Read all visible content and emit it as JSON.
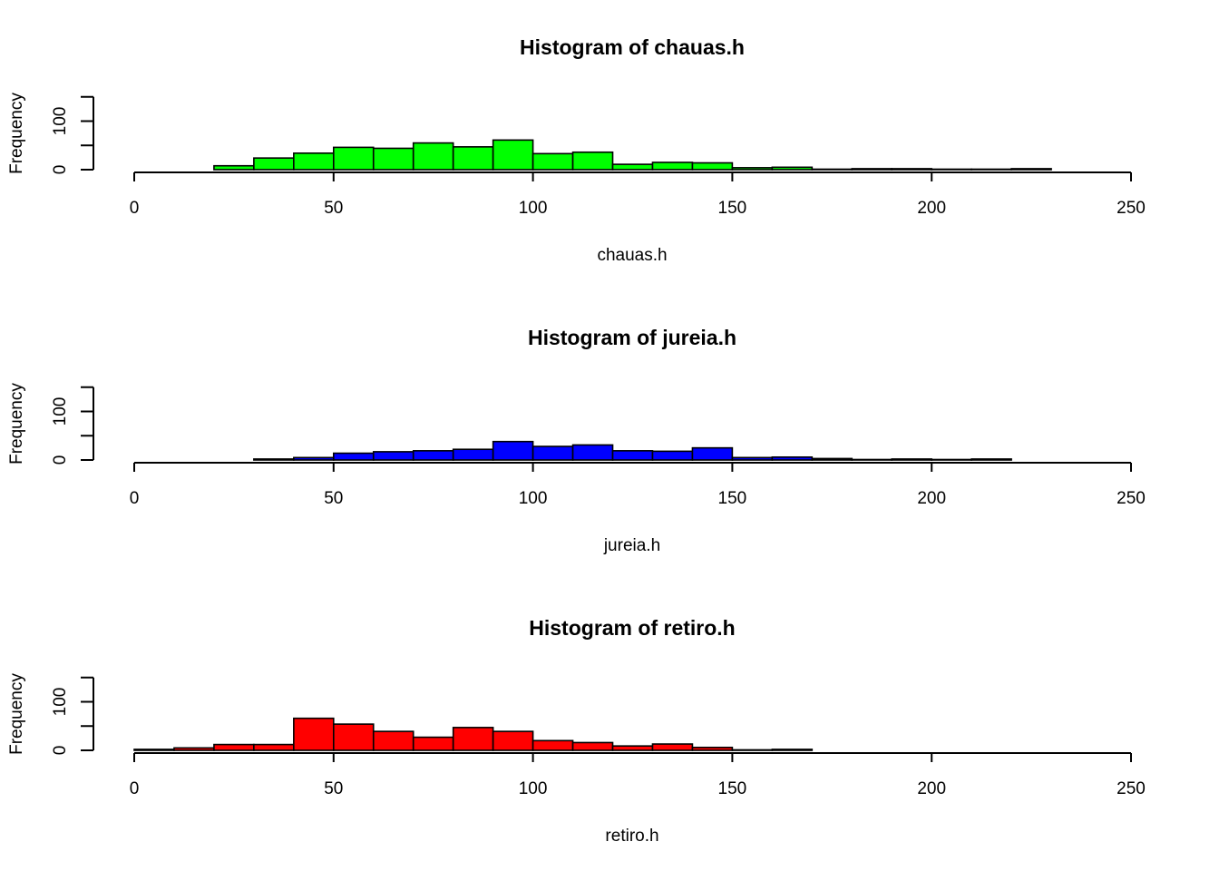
{
  "chart_data": [
    {
      "type": "bar",
      "title": "Histogram of chauas.h",
      "xlabel": "chauas.h",
      "ylabel": "Frequency",
      "color": "#00ff00",
      "xlim": [
        0,
        250
      ],
      "ylim": [
        0,
        150
      ],
      "x_ticks": [
        "0",
        "50",
        "100",
        "150",
        "200",
        "250"
      ],
      "y_ticks": [
        "0",
        "100"
      ],
      "bins": [
        [
          20,
          30
        ],
        [
          30,
          40
        ],
        [
          40,
          50
        ],
        [
          50,
          60
        ],
        [
          60,
          70
        ],
        [
          70,
          80
        ],
        [
          80,
          90
        ],
        [
          90,
          100
        ],
        [
          100,
          110
        ],
        [
          110,
          120
        ],
        [
          120,
          130
        ],
        [
          130,
          140
        ],
        [
          140,
          150
        ],
        [
          150,
          160
        ],
        [
          160,
          170
        ],
        [
          170,
          180
        ],
        [
          180,
          190
        ],
        [
          190,
          200
        ],
        [
          200,
          210
        ],
        [
          210,
          220
        ],
        [
          220,
          230
        ]
      ],
      "values": [
        8,
        24,
        34,
        46,
        44,
        55,
        47,
        61,
        33,
        36,
        11,
        15,
        14,
        4,
        5,
        1,
        2,
        2,
        1,
        1,
        2
      ]
    },
    {
      "type": "bar",
      "title": "Histogram of jureia.h",
      "xlabel": "jureia.h",
      "ylabel": "Frequency",
      "color": "#0000ff",
      "xlim": [
        0,
        250
      ],
      "ylim": [
        0,
        150
      ],
      "x_ticks": [
        "0",
        "50",
        "100",
        "150",
        "200",
        "250"
      ],
      "y_ticks": [
        "0",
        "100"
      ],
      "bins": [
        [
          30,
          40
        ],
        [
          40,
          50
        ],
        [
          50,
          60
        ],
        [
          60,
          70
        ],
        [
          70,
          80
        ],
        [
          80,
          90
        ],
        [
          90,
          100
        ],
        [
          100,
          110
        ],
        [
          110,
          120
        ],
        [
          120,
          130
        ],
        [
          130,
          140
        ],
        [
          140,
          150
        ],
        [
          150,
          160
        ],
        [
          160,
          170
        ],
        [
          170,
          180
        ],
        [
          180,
          190
        ],
        [
          190,
          200
        ],
        [
          200,
          210
        ],
        [
          210,
          220
        ]
      ],
      "values": [
        2,
        5,
        14,
        17,
        19,
        22,
        38,
        28,
        31,
        19,
        18,
        25,
        5,
        6,
        3,
        1,
        2,
        1,
        2
      ]
    },
    {
      "type": "bar",
      "title": "Histogram of retiro.h",
      "xlabel": "retiro.h",
      "ylabel": "Frequency",
      "color": "#ff0000",
      "xlim": [
        0,
        250
      ],
      "ylim": [
        0,
        150
      ],
      "x_ticks": [
        "0",
        "50",
        "100",
        "150",
        "200",
        "250"
      ],
      "y_ticks": [
        "0",
        "100"
      ],
      "bins": [
        [
          0,
          10
        ],
        [
          10,
          20
        ],
        [
          20,
          30
        ],
        [
          30,
          40
        ],
        [
          40,
          50
        ],
        [
          50,
          60
        ],
        [
          60,
          70
        ],
        [
          70,
          80
        ],
        [
          80,
          90
        ],
        [
          90,
          100
        ],
        [
          100,
          110
        ],
        [
          110,
          120
        ],
        [
          120,
          130
        ],
        [
          130,
          140
        ],
        [
          140,
          150
        ],
        [
          150,
          160
        ],
        [
          160,
          170
        ]
      ],
      "values": [
        2,
        5,
        12,
        12,
        66,
        54,
        39,
        27,
        47,
        39,
        20,
        16,
        9,
        13,
        6,
        1,
        2
      ]
    }
  ]
}
